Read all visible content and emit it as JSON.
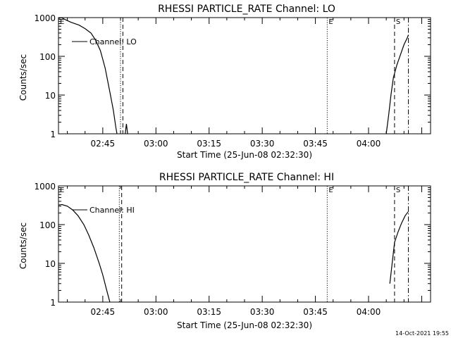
{
  "chart_data": [
    {
      "type": "line",
      "title": "RHESSI PARTICLE_RATE Channel: LO",
      "xlabel": "Start Time (25-Jun-08 02:32:30)",
      "ylabel": "Counts/sec",
      "y_scale": "log",
      "ylim": [
        1,
        1000
      ],
      "y_ticks": [
        {
          "value": 1,
          "label": "1"
        },
        {
          "value": 10,
          "label": "10"
        },
        {
          "value": 100,
          "label": "100"
        },
        {
          "value": 1000,
          "label": "1000"
        }
      ],
      "xlim": [
        "02:32:30",
        "04:17:30"
      ],
      "x_ticks": [
        "02:45",
        "03:00",
        "03:15",
        "03:30",
        "03:45",
        "04:00"
      ],
      "legend": {
        "label": "Channel: LO",
        "placement": "top-left"
      },
      "markers": [
        {
          "label": "E",
          "time": "02:32:30",
          "style": "dotted"
        },
        {
          "label": "",
          "time": "02:50:00",
          "style": "dotted"
        },
        {
          "label": "",
          "time": "02:50:40",
          "style": "dashed"
        },
        {
          "label": "E",
          "time": "03:48:20",
          "style": "dotted"
        },
        {
          "label": "S",
          "time": "04:07:20",
          "style": "dashed"
        },
        {
          "label": "",
          "time": "04:11:15",
          "style": "dashdot"
        }
      ],
      "series": [
        {
          "segments": [
            [
              {
                "t": "02:32:30",
                "y": 950
              },
              {
                "t": "02:33:20",
                "y": 1000
              },
              {
                "t": "02:34:30",
                "y": 880
              },
              {
                "t": "02:36:00",
                "y": 760
              },
              {
                "t": "02:38:20",
                "y": 640
              },
              {
                "t": "02:40:00",
                "y": 520
              },
              {
                "t": "02:41:40",
                "y": 400
              },
              {
                "t": "02:43:00",
                "y": 260
              },
              {
                "t": "02:44:20",
                "y": 140
              },
              {
                "t": "02:45:40",
                "y": 50
              },
              {
                "t": "02:47:00",
                "y": 12
              },
              {
                "t": "02:48:00",
                "y": 4
              },
              {
                "t": "02:48:40",
                "y": 1.5
              },
              {
                "t": "02:49:00",
                "y": 1
              }
            ],
            [
              {
                "t": "02:51:20",
                "y": 1
              },
              {
                "t": "02:51:40",
                "y": 1.8
              },
              {
                "t": "02:52:00",
                "y": 1
              }
            ],
            [
              {
                "t": "04:05:00",
                "y": 1
              },
              {
                "t": "04:05:40",
                "y": 3
              },
              {
                "t": "04:06:20",
                "y": 10
              },
              {
                "t": "04:07:00",
                "y": 28
              },
              {
                "t": "04:08:00",
                "y": 60
              },
              {
                "t": "04:09:00",
                "y": 110
              },
              {
                "t": "04:10:00",
                "y": 200
              },
              {
                "t": "04:11:00",
                "y": 310
              },
              {
                "t": "04:11:15",
                "y": 360
              }
            ]
          ]
        }
      ]
    },
    {
      "type": "line",
      "title": "RHESSI PARTICLE_RATE Channel: HI",
      "xlabel": "Start Time (25-Jun-08 02:32:30)",
      "ylabel": "Counts/sec",
      "y_scale": "log",
      "ylim": [
        1,
        1000
      ],
      "y_ticks": [
        {
          "value": 1,
          "label": "1"
        },
        {
          "value": 10,
          "label": "10"
        },
        {
          "value": 100,
          "label": "100"
        },
        {
          "value": 1000,
          "label": "1000"
        }
      ],
      "xlim": [
        "02:32:30",
        "04:17:30"
      ],
      "x_ticks": [
        "02:45",
        "03:00",
        "03:15",
        "03:30",
        "03:45",
        "04:00"
      ],
      "legend": {
        "label": "Channel: HI",
        "placement": "top-left"
      },
      "markers": [
        {
          "label": "E",
          "time": "02:32:30",
          "style": "dotted"
        },
        {
          "label": "",
          "time": "02:49:40",
          "style": "dotted"
        },
        {
          "label": "",
          "time": "02:50:20",
          "style": "dashed"
        },
        {
          "label": "E",
          "time": "03:48:20",
          "style": "dotted"
        },
        {
          "label": "S",
          "time": "04:07:20",
          "style": "dashed"
        },
        {
          "label": "",
          "time": "04:11:15",
          "style": "dashdot"
        }
      ],
      "series": [
        {
          "segments": [
            [
              {
                "t": "02:32:30",
                "y": 320
              },
              {
                "t": "02:33:30",
                "y": 330
              },
              {
                "t": "02:35:00",
                "y": 300
              },
              {
                "t": "02:36:30",
                "y": 240
              },
              {
                "t": "02:38:00",
                "y": 170
              },
              {
                "t": "02:39:40",
                "y": 100
              },
              {
                "t": "02:41:00",
                "y": 55
              },
              {
                "t": "02:42:30",
                "y": 25
              },
              {
                "t": "02:44:00",
                "y": 10
              },
              {
                "t": "02:45:00",
                "y": 5
              },
              {
                "t": "02:46:00",
                "y": 2.2
              },
              {
                "t": "02:46:40",
                "y": 1.3
              },
              {
                "t": "02:47:00",
                "y": 1
              }
            ],
            [
              {
                "t": "04:06:00",
                "y": 3
              },
              {
                "t": "04:06:40",
                "y": 10
              },
              {
                "t": "04:07:20",
                "y": 35
              },
              {
                "t": "04:08:20",
                "y": 65
              },
              {
                "t": "04:09:20",
                "y": 110
              },
              {
                "t": "04:10:20",
                "y": 170
              },
              {
                "t": "04:11:15",
                "y": 220
              }
            ]
          ]
        }
      ]
    }
  ],
  "footer": {
    "timestamp": "14-Oct-2021 19:55"
  }
}
